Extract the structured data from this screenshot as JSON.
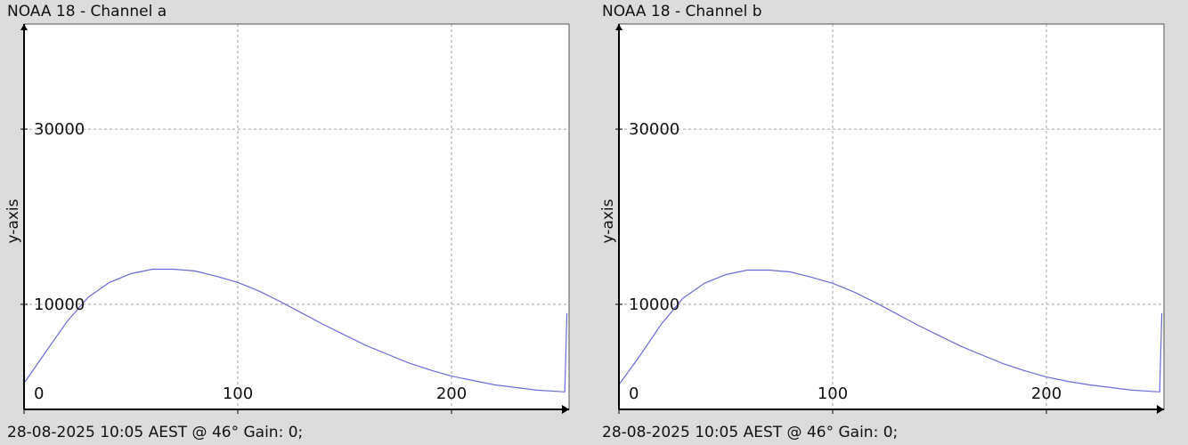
{
  "colors": {
    "background": "#dcdcdc",
    "plot_area": "#ffffff",
    "grid": "#a0a0a0",
    "series": "#6a6ad8",
    "axis": "#000000"
  },
  "panels": [
    {
      "title": "NOAA 18 - Channel a",
      "footer": "28-08-2025 10:05 AEST @ 46° Gain: 0;"
    },
    {
      "title": "NOAA 18 - Channel b",
      "footer": "28-08-2025 10:05 AEST @ 46° Gain: 0;"
    }
  ],
  "chart_data": [
    {
      "type": "line",
      "title": "NOAA 18 - Channel a",
      "xlabel": "",
      "ylabel": "y-axis",
      "xlim": [
        0,
        255
      ],
      "ylim": [
        -2000,
        42000
      ],
      "x_ticks": [
        0,
        100,
        200
      ],
      "y_ticks": [
        10000,
        30000
      ],
      "grid": true,
      "series": [
        {
          "x": [
            0,
            10,
            20,
            30,
            40,
            50,
            60,
            70,
            80,
            90,
            100,
            110,
            120,
            130,
            140,
            150,
            160,
            170,
            180,
            190,
            200,
            210,
            220,
            230,
            240,
            253,
            254
          ],
          "y": [
            1000,
            4500,
            8000,
            10800,
            12500,
            13500,
            14000,
            14000,
            13800,
            13200,
            12500,
            11500,
            10300,
            9000,
            7700,
            6500,
            5300,
            4300,
            3300,
            2500,
            1800,
            1300,
            800,
            500,
            200,
            0,
            9000
          ]
        }
      ]
    },
    {
      "type": "line",
      "title": "NOAA 18 - Channel b",
      "xlabel": "",
      "ylabel": "y-axis",
      "xlim": [
        0,
        255
      ],
      "ylim": [
        -2000,
        42000
      ],
      "x_ticks": [
        0,
        100,
        200
      ],
      "y_ticks": [
        10000,
        30000
      ],
      "grid": true,
      "series": [
        {
          "x": [
            0,
            10,
            20,
            30,
            40,
            50,
            60,
            70,
            80,
            90,
            100,
            110,
            120,
            130,
            140,
            150,
            160,
            170,
            180,
            190,
            200,
            210,
            220,
            230,
            240,
            253,
            254
          ],
          "y": [
            800,
            4200,
            7800,
            10700,
            12400,
            13400,
            13900,
            13900,
            13700,
            13100,
            12400,
            11400,
            10200,
            8900,
            7600,
            6400,
            5200,
            4200,
            3200,
            2400,
            1700,
            1200,
            800,
            500,
            200,
            0,
            9000
          ]
        }
      ]
    }
  ]
}
